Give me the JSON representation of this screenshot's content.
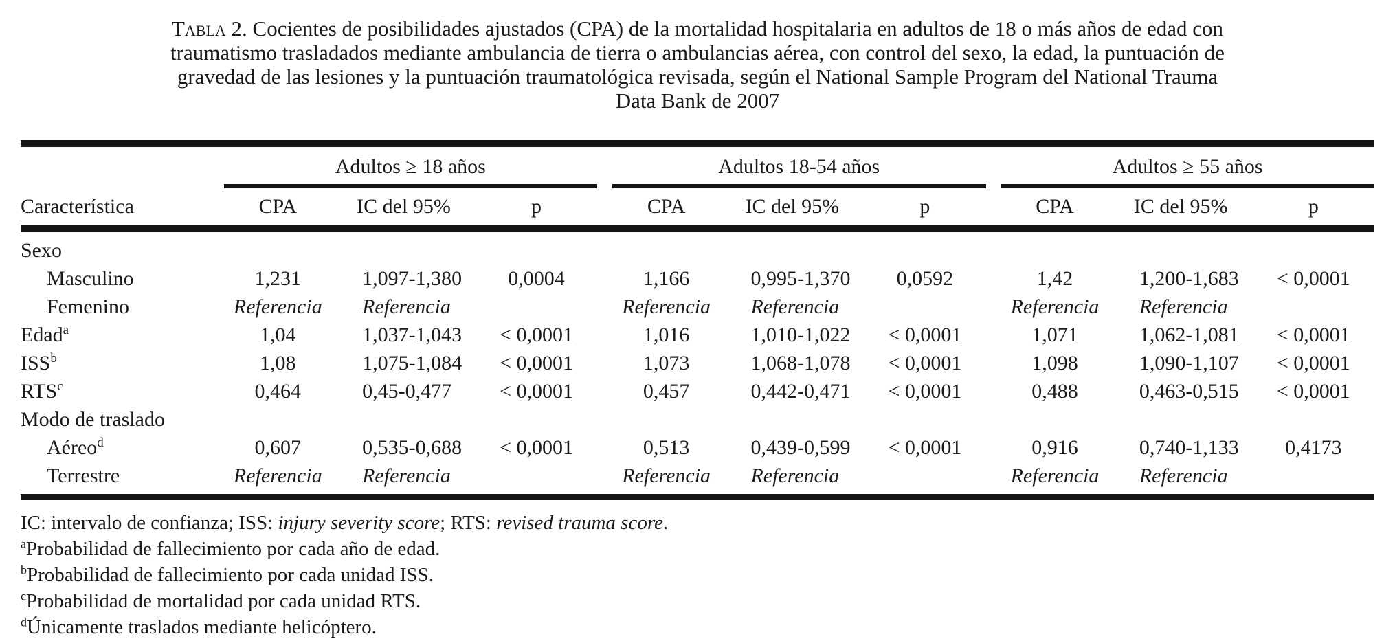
{
  "caption": {
    "label": "Tabla 2.",
    "lines": [
      "Cocientes de posibilidades ajustados (CPA) de la mortalidad hospitalaria en adultos de 18 o más años de edad con",
      "traumatismo trasladados mediante ambulancia de tierra o ambulancias aérea, con control del sexo, la edad, la puntuación de",
      "gravedad de las lesiones y la puntuación traumatológica revisada, según el National Sample Program del National Trauma",
      "Data Bank de 2007"
    ]
  },
  "header": {
    "row_header": "Característica",
    "groups": [
      {
        "label": "Adultos ≥ 18 años"
      },
      {
        "label": "Adultos 18-54 años"
      },
      {
        "label": "Adultos ≥ 55 años"
      }
    ],
    "subcols": {
      "cpa": "CPA",
      "ic": "IC del 95%",
      "p": "p"
    }
  },
  "rows": [
    {
      "label": "Sexo",
      "sup": "",
      "cells": [
        "",
        "",
        "",
        "",
        "",
        "",
        "",
        "",
        ""
      ]
    },
    {
      "label": "Masculino",
      "sup": "",
      "cells": [
        "1,231",
        "1,097-1,380",
        "0,0004",
        "1,166",
        "0,995-1,370",
        "0,0592",
        "1,42",
        "1,200-1,683",
        "< 0,0001"
      ]
    },
    {
      "label": "Femenino",
      "sup": "",
      "cells": [
        "Referencia",
        "Referencia",
        "",
        "Referencia",
        "Referencia",
        "",
        "Referencia",
        "Referencia",
        ""
      ]
    },
    {
      "label": "Edad",
      "sup": "a",
      "cells": [
        "1,04",
        "1,037-1,043",
        "< 0,0001",
        "1,016",
        "1,010-1,022",
        "< 0,0001",
        "1,071",
        "1,062-1,081",
        "< 0,0001"
      ]
    },
    {
      "label": "ISS",
      "sup": "b",
      "cells": [
        "1,08",
        "1,075-1,084",
        "< 0,0001",
        "1,073",
        "1,068-1,078",
        "< 0,0001",
        "1,098",
        "1,090-1,107",
        "< 0,0001"
      ]
    },
    {
      "label": "RTS",
      "sup": "c",
      "cells": [
        "0,464",
        "0,45-0,477",
        "< 0,0001",
        "0,457",
        "0,442-0,471",
        "< 0,0001",
        "0,488",
        "0,463-0,515",
        "< 0,0001"
      ]
    },
    {
      "label": "Modo de traslado",
      "sup": "",
      "cells": [
        "",
        "",
        "",
        "",
        "",
        "",
        "",
        "",
        ""
      ]
    },
    {
      "label": "Aéreo",
      "sup": "d",
      "cells": [
        "0,607",
        "0,535-0,688",
        "< 0,0001",
        "0,513",
        "0,439-0,599",
        "< 0,0001",
        "0,916",
        "0,740-1,133",
        "0,4173"
      ]
    },
    {
      "label": "Terrestre",
      "sup": "",
      "cells": [
        "Referencia",
        "Referencia",
        "",
        "Referencia",
        "Referencia",
        "",
        "Referencia",
        "Referencia",
        ""
      ]
    }
  ],
  "footnotes": {
    "abbrev": {
      "pre": "IC: intervalo de confianza; ISS: ",
      "italic1": "injury severity score",
      "mid": "; RTS: ",
      "italic2": "revised trauma score",
      "post": "."
    },
    "notes": [
      {
        "marker": "a",
        "text": "Probabilidad de fallecimiento por cada año de edad."
      },
      {
        "marker": "b",
        "text": "Probabilidad de fallecimiento por cada unidad ISS."
      },
      {
        "marker": "c",
        "text": "Probabilidad de mortalidad por cada unidad RTS."
      },
      {
        "marker": "d",
        "text": "Únicamente traslados mediante helicóptero."
      }
    ]
  }
}
